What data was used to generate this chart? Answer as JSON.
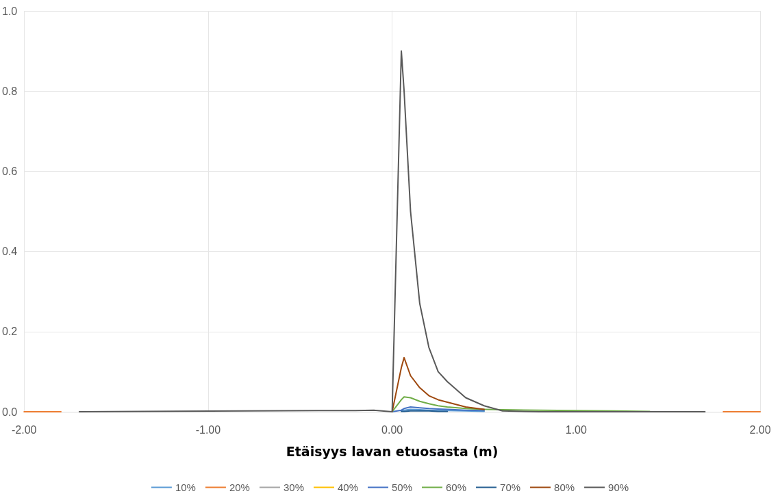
{
  "chart_data": {
    "type": "line",
    "xlabel": "Etäisyys lavan etuosasta (m)",
    "x": [
      -2,
      -1.8,
      -1.7,
      -0.4,
      -0.2,
      -0.1,
      0,
      0.05,
      0.065,
      0.1,
      0.15,
      0.2,
      0.25,
      0.3,
      0.4,
      0.5,
      0.6,
      0.8,
      1.0,
      1.2,
      1.4,
      1.6,
      1.7,
      1.8,
      2.0
    ],
    "series": [
      {
        "name": "10%",
        "color": "#5b9bd5",
        "values": [
          null,
          null,
          null,
          null,
          null,
          null,
          null,
          0.002,
          0.004,
          0.006,
          0.005,
          0.004,
          0.003,
          0.003,
          0.002,
          0.001,
          null,
          null,
          null,
          null,
          null,
          null,
          null,
          null,
          null
        ]
      },
      {
        "name": "20%",
        "color": "#ed7d31",
        "values": [
          0,
          0,
          null,
          null,
          null,
          null,
          null,
          null,
          null,
          null,
          null,
          null,
          null,
          null,
          null,
          null,
          null,
          null,
          null,
          null,
          null,
          null,
          null,
          0,
          0
        ]
      },
      {
        "name": "30%",
        "color": "#a5a5a5",
        "values": [
          null,
          null,
          null,
          null,
          null,
          null,
          null,
          null,
          null,
          null,
          null,
          null,
          null,
          null,
          null,
          null,
          null,
          null,
          null,
          null,
          null,
          null,
          null,
          null,
          null
        ]
      },
      {
        "name": "40%",
        "color": "#ffc000",
        "values": [
          null,
          null,
          null,
          null,
          null,
          null,
          null,
          null,
          null,
          null,
          null,
          null,
          null,
          null,
          null,
          null,
          null,
          null,
          null,
          null,
          null,
          null,
          null,
          null,
          null
        ]
      },
      {
        "name": "50%",
        "color": "#4472c4",
        "values": [
          null,
          null,
          null,
          null,
          null,
          null,
          0,
          0.004,
          0.008,
          0.012,
          0.01,
          0.008,
          0.007,
          0.006,
          0.004,
          0.003,
          null,
          null,
          null,
          null,
          null,
          null,
          null,
          null,
          null
        ]
      },
      {
        "name": "60%",
        "color": "#70ad47",
        "values": [
          null,
          null,
          null,
          null,
          null,
          null,
          0,
          0.03,
          0.037,
          0.035,
          0.026,
          0.02,
          0.015,
          0.012,
          0.008,
          0.006,
          0.005,
          0.004,
          0.003,
          0.002,
          0.001,
          null,
          null,
          null,
          null
        ]
      },
      {
        "name": "70%",
        "color": "#255e91",
        "values": [
          null,
          null,
          null,
          null,
          null,
          null,
          null,
          0.001,
          0.001,
          0.002,
          0.002,
          0.002,
          0.001,
          0.001,
          null,
          null,
          null,
          null,
          null,
          null,
          null,
          null,
          null,
          null,
          null
        ]
      },
      {
        "name": "80%",
        "color": "#9e480e",
        "values": [
          null,
          null,
          null,
          null,
          null,
          null,
          0,
          0.11,
          0.135,
          0.09,
          0.06,
          0.04,
          0.03,
          0.024,
          0.012,
          0.006,
          null,
          null,
          null,
          null,
          null,
          null,
          null,
          null,
          null
        ]
      },
      {
        "name": "90%",
        "color": "#595959",
        "values": [
          null,
          null,
          0,
          0.003,
          0.003,
          0.004,
          0,
          0.9,
          0.8,
          0.5,
          0.27,
          0.16,
          0.1,
          0.075,
          0.035,
          0.015,
          0.002,
          0,
          0,
          0,
          0,
          0,
          0,
          null,
          null
        ]
      }
    ],
    "xlim": [
      -2,
      2
    ],
    "xticks": [
      {
        "value": -2,
        "label": "-2.00"
      },
      {
        "value": -1,
        "label": "-1.00"
      },
      {
        "value": 0,
        "label": "0.00"
      },
      {
        "value": 1,
        "label": "1.00"
      },
      {
        "value": 2,
        "label": "2.00"
      }
    ],
    "ylim": [
      0,
      1
    ],
    "yticks": [
      {
        "value": 0,
        "label": "0.0"
      },
      {
        "value": 0.2,
        "label": "0.2"
      },
      {
        "value": 0.4,
        "label": "0.4"
      },
      {
        "value": 0.6,
        "label": "0.6"
      },
      {
        "value": 0.8,
        "label": "0.8"
      },
      {
        "value": 1,
        "label": "1.0"
      }
    ],
    "grid": true,
    "legend": "bottom",
    "marker": "none",
    "line_style": "solid"
  }
}
